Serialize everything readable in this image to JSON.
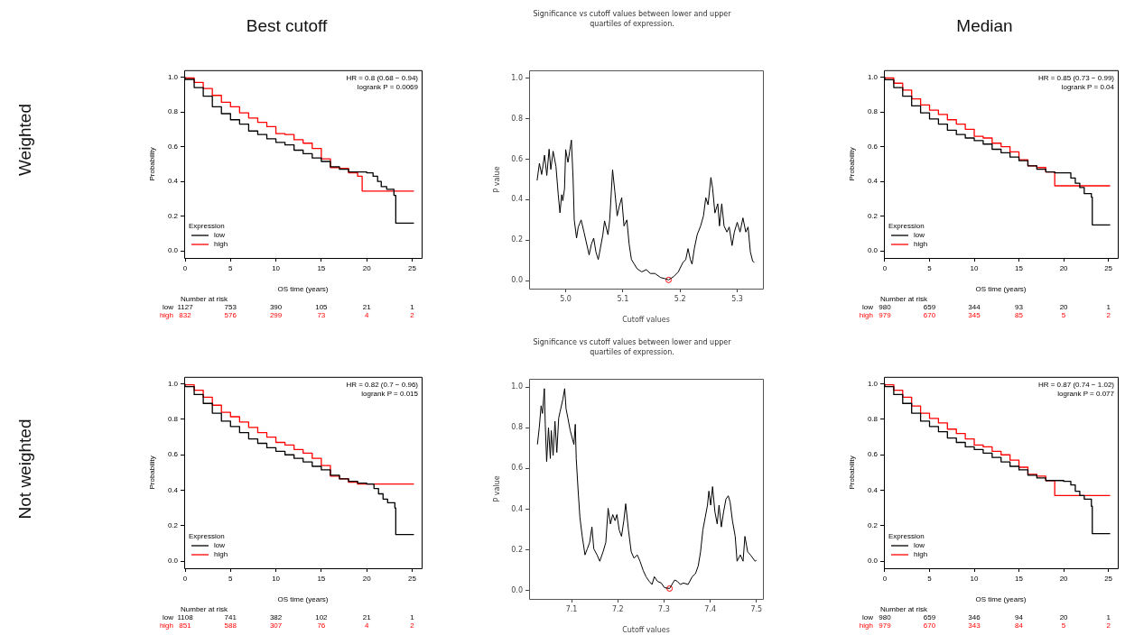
{
  "chart_data": [
    {
      "type": "step",
      "title": "Best cutoff",
      "xlabel": "OS time (years)",
      "ylabel": "Probability",
      "legend": "bottom left",
      "legend_title": "Expression",
      "xlim": [
        -0.1,
        26.05
      ],
      "ylim": [
        -0.04,
        1.04
      ],
      "xticks": [
        0,
        5,
        10,
        15,
        20,
        25
      ],
      "yticks": [
        {
          "value": 0,
          "label": "0.0"
        },
        {
          "value": 0.2,
          "label": "0.2"
        },
        {
          "value": 0.4,
          "label": "0.4"
        },
        {
          "value": 0.6,
          "label": "0.6"
        },
        {
          "value": 0.8,
          "label": "0.8"
        },
        {
          "value": 1,
          "label": "1.0"
        }
      ],
      "series": [
        {
          "name": "low",
          "color": "#000000",
          "x": [
            0,
            1,
            2,
            3,
            4,
            5,
            6,
            7,
            8,
            9,
            10,
            11,
            12,
            13,
            14,
            15,
            16,
            17,
            18,
            19,
            20,
            20.7,
            21.2,
            21.6,
            22.2,
            23.0,
            23.2,
            24.4,
            25.2
          ],
          "values": [
            1,
            0.987,
            0.94,
            0.89,
            0.83,
            0.79,
            0.755,
            0.73,
            0.69,
            0.67,
            0.645,
            0.625,
            0.61,
            0.58,
            0.56,
            0.535,
            0.515,
            0.485,
            0.47,
            0.455,
            0.455,
            0.45,
            0.43,
            0.4,
            0.37,
            0.355,
            0.32,
            0.16,
            0.16
          ]
        },
        {
          "name": "high",
          "color": "#ff0000",
          "x": [
            0,
            1,
            2,
            3,
            4,
            5,
            6,
            7,
            8,
            9,
            10,
            11,
            12,
            13,
            14,
            15,
            16,
            17,
            18,
            19,
            19.5,
            19.9,
            25.2
          ],
          "values": [
            1,
            0.995,
            0.97,
            0.935,
            0.895,
            0.855,
            0.83,
            0.795,
            0.765,
            0.74,
            0.715,
            0.675,
            0.67,
            0.64,
            0.62,
            0.59,
            0.53,
            0.48,
            0.475,
            0.45,
            0.43,
            0.345,
            0.345
          ]
        }
      ],
      "annotations": [
        "HR = 0.8 (0.68 − 0.94)",
        "logrank P = 0.0069",
        "Number at risk",
        "low",
        "1127",
        "753",
        "390",
        "105",
        "21",
        "1",
        "high",
        "832",
        "576",
        "299",
        "73",
        "4",
        "2",
        "Weighted"
      ]
    },
    {
      "type": "line",
      "title": "Significance vs cutoff values between lower and upper quartiles of expression.",
      "xlabel": "Cutoff values",
      "ylabel": "P value",
      "xlim": [
        4.936,
        5.345
      ],
      "ylim": [
        -0.04,
        1.04
      ],
      "xticks": [
        {
          "value": 5,
          "label": "5.0"
        },
        5.1,
        5.2,
        5.3
      ],
      "yticks": [
        {
          "value": 0,
          "label": "0.0"
        },
        {
          "value": 0.2,
          "label": "0.2"
        },
        {
          "value": 0.4,
          "label": "0.4"
        },
        {
          "value": 0.6,
          "label": "0.6"
        },
        {
          "value": 0.8,
          "label": "0.8"
        },
        {
          "value": 1,
          "label": "1.0"
        }
      ],
      "series": [
        {
          "color": "#000000",
          "x": [
            4.95,
            4.954,
            4.958,
            4.963,
            4.967,
            4.971,
            4.974,
            4.978,
            4.983,
            4.985,
            4.987,
            4.99,
            4.993,
            4.995,
            4.998,
            5.0,
            5.004,
            5.007,
            5.01,
            5.013,
            5.015,
            5.019,
            5.022,
            5.027,
            5.032,
            5.038,
            5.041,
            5.045,
            5.049,
            5.053,
            5.057,
            5.061,
            5.065,
            5.068,
            5.074,
            5.077,
            5.082,
            5.086,
            5.09,
            5.094,
            5.098,
            5.102,
            5.107,
            5.111,
            5.115,
            5.12,
            5.125,
            5.133,
            5.141,
            5.148,
            5.156,
            5.166,
            5.174,
            5.18,
            5.189,
            5.197,
            5.205,
            5.21,
            5.214,
            5.218,
            5.221,
            5.225,
            5.23,
            5.236,
            5.241,
            5.245,
            5.249,
            5.254,
            5.257,
            5.261,
            5.266,
            5.269,
            5.273,
            5.277,
            5.282,
            5.286,
            5.291,
            5.295,
            5.3,
            5.305,
            5.31,
            5.315,
            5.319,
            5.323,
            5.327,
            5.33
          ],
          "values": [
            0.495,
            0.58,
            0.525,
            0.62,
            0.52,
            0.65,
            0.55,
            0.64,
            0.565,
            0.495,
            0.425,
            0.335,
            0.425,
            0.395,
            0.455,
            0.648,
            0.585,
            0.64,
            0.695,
            0.5,
            0.3,
            0.21,
            0.265,
            0.3,
            0.24,
            0.165,
            0.127,
            0.18,
            0.21,
            0.14,
            0.104,
            0.165,
            0.227,
            0.295,
            0.227,
            0.3,
            0.548,
            0.44,
            0.32,
            0.37,
            0.41,
            0.27,
            0.3,
            0.18,
            0.104,
            0.081,
            0.058,
            0.043,
            0.054,
            0.035,
            0.035,
            0.015,
            0.009,
            0.003,
            0.02,
            0.043,
            0.089,
            0.104,
            0.158,
            0.104,
            0.081,
            0.158,
            0.227,
            0.27,
            0.32,
            0.41,
            0.375,
            0.51,
            0.456,
            0.334,
            0.38,
            0.27,
            0.38,
            0.27,
            0.24,
            0.265,
            0.173,
            0.24,
            0.288,
            0.24,
            0.31,
            0.24,
            0.265,
            0.142,
            0.096,
            0.09
          ]
        },
        {
          "type": "scatter",
          "marker": "circle",
          "color": "#ff0000",
          "x": [
            5.18
          ],
          "values": [
            0.003
          ]
        }
      ]
    },
    {
      "type": "step",
      "title": "Median",
      "xlabel": "OS time (years)",
      "ylabel": "Probability",
      "legend": "bottom left",
      "legend_title": "Expression",
      "xlim": [
        -0.1,
        26.05
      ],
      "ylim": [
        -0.04,
        1.04
      ],
      "xticks": [
        0,
        5,
        10,
        15,
        20,
        25
      ],
      "yticks": [
        {
          "value": 0,
          "label": "0.0"
        },
        {
          "value": 0.2,
          "label": "0.2"
        },
        {
          "value": 0.4,
          "label": "0.4"
        },
        {
          "value": 0.6,
          "label": "0.6"
        },
        {
          "value": 0.8,
          "label": "0.8"
        },
        {
          "value": 1,
          "label": "1.0"
        }
      ],
      "series": [
        {
          "name": "low",
          "color": "#000000",
          "x": [
            0,
            1,
            2,
            3,
            4,
            5,
            6,
            7,
            8,
            9,
            10,
            11,
            12,
            13,
            14,
            15,
            16,
            17,
            18,
            19,
            20,
            20.8,
            21.3,
            21.8,
            22.3,
            23.1,
            23.2,
            24.4,
            25.2
          ],
          "values": [
            1,
            0.985,
            0.94,
            0.89,
            0.835,
            0.795,
            0.76,
            0.73,
            0.695,
            0.67,
            0.65,
            0.635,
            0.615,
            0.585,
            0.565,
            0.54,
            0.52,
            0.49,
            0.47,
            0.455,
            0.45,
            0.45,
            0.42,
            0.39,
            0.365,
            0.33,
            0.31,
            0.15,
            0.15
          ]
        },
        {
          "name": "high",
          "color": "#ff0000",
          "x": [
            0,
            1,
            2,
            3,
            4,
            5,
            6,
            7,
            8,
            9,
            10,
            11,
            12,
            13,
            14,
            15,
            16,
            17,
            18,
            19,
            19.9,
            25.2
          ],
          "values": [
            1,
            0.995,
            0.965,
            0.925,
            0.875,
            0.84,
            0.81,
            0.785,
            0.755,
            0.73,
            0.7,
            0.66,
            0.65,
            0.62,
            0.6,
            0.57,
            0.525,
            0.49,
            0.48,
            0.455,
            0.375,
            0.375
          ]
        }
      ],
      "annotations": [
        "HR = 0.85 (0.73 − 0.99)",
        "logrank P = 0.04",
        "Number at risk",
        "low",
        "980",
        "659",
        "344",
        "93",
        "20",
        "1",
        "high",
        "979",
        "670",
        "345",
        "85",
        "5",
        "2"
      ]
    },
    {
      "type": "step",
      "xlabel": "OS time (years)",
      "ylabel": "Probability",
      "legend": "bottom left",
      "legend_title": "Expression",
      "xlim": [
        -0.1,
        26.05
      ],
      "ylim": [
        -0.04,
        1.04
      ],
      "xticks": [
        0,
        5,
        10,
        15,
        20,
        25
      ],
      "yticks": [
        {
          "value": 0,
          "label": "0.0"
        },
        {
          "value": 0.2,
          "label": "0.2"
        },
        {
          "value": 0.4,
          "label": "0.4"
        },
        {
          "value": 0.6,
          "label": "0.6"
        },
        {
          "value": 0.8,
          "label": "0.8"
        },
        {
          "value": 1,
          "label": "1.0"
        }
      ],
      "series": [
        {
          "name": "low",
          "color": "#000000",
          "x": [
            0,
            1,
            2,
            3,
            4,
            5,
            6,
            7,
            8,
            9,
            10,
            11,
            12,
            13,
            14,
            15,
            16,
            17,
            18,
            19,
            20,
            20.8,
            21.3,
            21.8,
            22.3,
            23.1,
            23.2,
            24.4,
            25.2
          ],
          "values": [
            1,
            0.985,
            0.94,
            0.89,
            0.835,
            0.79,
            0.76,
            0.725,
            0.69,
            0.665,
            0.64,
            0.62,
            0.6,
            0.58,
            0.56,
            0.535,
            0.515,
            0.485,
            0.465,
            0.45,
            0.44,
            0.435,
            0.41,
            0.38,
            0.35,
            0.33,
            0.3,
            0.15,
            0.15
          ]
        },
        {
          "name": "high",
          "color": "#ff0000",
          "x": [
            0,
            1,
            2,
            3,
            4,
            5,
            6,
            7,
            8,
            9,
            10,
            11,
            12,
            13,
            14,
            15,
            16,
            17,
            18,
            19,
            19.5,
            25.2
          ],
          "values": [
            1,
            0.995,
            0.965,
            0.925,
            0.88,
            0.84,
            0.815,
            0.785,
            0.755,
            0.725,
            0.7,
            0.67,
            0.655,
            0.63,
            0.61,
            0.58,
            0.54,
            0.48,
            0.465,
            0.445,
            0.435,
            0.435
          ]
        }
      ],
      "annotations": [
        "HR = 0.82 (0.7 − 0.96)",
        "logrank P = 0.015",
        "Number at risk",
        "low",
        "1108",
        "741",
        "382",
        "102",
        "21",
        "1",
        "high",
        "851",
        "588",
        "307",
        "76",
        "4",
        "2",
        "Not weighted"
      ]
    },
    {
      "type": "line",
      "title": "Significance vs cutoff values between lower and upper quartiles of expression.",
      "xlabel": "Cutoff values",
      "ylabel": "P value",
      "xlim": [
        7.008,
        7.514
      ],
      "ylim": [
        -0.04,
        1.04
      ],
      "xticks": [
        7.1,
        7.2,
        7.3,
        7.4,
        7.5
      ],
      "yticks": [
        {
          "value": 0,
          "label": "0.0"
        },
        {
          "value": 0.2,
          "label": "0.2"
        },
        {
          "value": 0.4,
          "label": "0.4"
        },
        {
          "value": 0.6,
          "label": "0.6"
        },
        {
          "value": 0.8,
          "label": "0.8"
        },
        {
          "value": 1,
          "label": "1.0"
        }
      ],
      "series": [
        {
          "color": "#000000",
          "x": [
            7.026,
            7.03,
            7.034,
            7.037,
            7.041,
            7.043,
            7.046,
            7.05,
            7.054,
            7.056,
            7.06,
            7.064,
            7.068,
            7.072,
            7.075,
            7.081,
            7.085,
            7.088,
            7.092,
            7.097,
            7.105,
            7.108,
            7.11,
            7.114,
            7.118,
            7.123,
            7.129,
            7.134,
            7.139,
            7.144,
            7.148,
            7.155,
            7.161,
            7.168,
            7.174,
            7.179,
            7.184,
            7.189,
            7.194,
            7.198,
            7.203,
            7.208,
            7.213,
            7.217,
            7.223,
            7.229,
            7.235,
            7.242,
            7.248,
            7.255,
            7.261,
            7.268,
            7.274,
            7.279,
            7.286,
            7.294,
            7.301,
            7.312,
            7.323,
            7.329,
            7.335,
            7.342,
            7.352,
            7.361,
            7.368,
            7.374,
            7.379,
            7.384,
            7.389,
            7.394,
            7.397,
            7.401,
            7.405,
            7.41,
            7.415,
            7.419,
            7.424,
            7.429,
            7.434,
            7.439,
            7.443,
            7.448,
            7.454,
            7.458,
            7.465,
            7.471,
            7.475,
            7.481,
            7.487,
            7.497,
            7.5
          ],
          "values": [
            0.718,
            0.8,
            0.908,
            0.87,
            0.992,
            0.817,
            0.634,
            0.8,
            0.649,
            0.786,
            0.664,
            0.832,
            0.679,
            0.847,
            0.878,
            0.939,
            0.992,
            0.893,
            0.847,
            0.786,
            0.718,
            0.817,
            0.649,
            0.496,
            0.359,
            0.267,
            0.176,
            0.206,
            0.237,
            0.313,
            0.206,
            0.176,
            0.145,
            0.191,
            0.237,
            0.405,
            0.328,
            0.374,
            0.344,
            0.374,
            0.298,
            0.267,
            0.344,
            0.427,
            0.298,
            0.191,
            0.16,
            0.176,
            0.145,
            0.099,
            0.069,
            0.046,
            0.031,
            0.069,
            0.046,
            0.038,
            0.015,
            0.011,
            0.053,
            0.046,
            0.031,
            0.038,
            0.031,
            0.069,
            0.084,
            0.122,
            0.191,
            0.298,
            0.359,
            0.42,
            0.489,
            0.42,
            0.511,
            0.389,
            0.328,
            0.42,
            0.313,
            0.389,
            0.45,
            0.466,
            0.435,
            0.344,
            0.267,
            0.145,
            0.176,
            0.145,
            0.267,
            0.191,
            0.176,
            0.145,
            0.15
          ]
        },
        {
          "type": "scatter",
          "marker": "circle",
          "color": "#ff0000",
          "x": [
            7.312
          ],
          "values": [
            0.011
          ]
        }
      ]
    },
    {
      "type": "step",
      "xlabel": "OS time (years)",
      "ylabel": "Probability",
      "legend": "bottom left",
      "legend_title": "Expression",
      "xlim": [
        -0.1,
        26.05
      ],
      "ylim": [
        -0.04,
        1.04
      ],
      "xticks": [
        0,
        5,
        10,
        15,
        20,
        25
      ],
      "yticks": [
        {
          "value": 0,
          "label": "0.0"
        },
        {
          "value": 0.2,
          "label": "0.2"
        },
        {
          "value": 0.4,
          "label": "0.4"
        },
        {
          "value": 0.6,
          "label": "0.6"
        },
        {
          "value": 0.8,
          "label": "0.8"
        },
        {
          "value": 1,
          "label": "1.0"
        }
      ],
      "series": [
        {
          "name": "low",
          "color": "#000000",
          "x": [
            0,
            1,
            2,
            3,
            4,
            5,
            6,
            7,
            8,
            9,
            10,
            11,
            12,
            13,
            14,
            15,
            16,
            17,
            18,
            19,
            20,
            20.8,
            21.3,
            21.8,
            22.3,
            23.1,
            23.2,
            24.4,
            25.2
          ],
          "values": [
            1,
            0.985,
            0.94,
            0.89,
            0.835,
            0.79,
            0.76,
            0.73,
            0.695,
            0.67,
            0.645,
            0.63,
            0.61,
            0.585,
            0.56,
            0.535,
            0.515,
            0.485,
            0.47,
            0.455,
            0.455,
            0.45,
            0.43,
            0.395,
            0.37,
            0.35,
            0.31,
            0.155,
            0.155
          ]
        },
        {
          "name": "high",
          "color": "#ff0000",
          "x": [
            0,
            1,
            2,
            3,
            4,
            5,
            6,
            7,
            8,
            9,
            10,
            11,
            12,
            13,
            14,
            15,
            16,
            17,
            18,
            19,
            19.9,
            25.2
          ],
          "values": [
            1,
            0.995,
            0.965,
            0.925,
            0.875,
            0.835,
            0.805,
            0.78,
            0.745,
            0.72,
            0.69,
            0.655,
            0.645,
            0.62,
            0.6,
            0.57,
            0.53,
            0.49,
            0.48,
            0.455,
            0.37,
            0.37
          ]
        }
      ],
      "annotations": [
        "HR = 0.87 (0.74 − 1.02)",
        "logrank P = 0.077",
        "Number at risk",
        "low",
        "980",
        "659",
        "346",
        "94",
        "20",
        "1",
        "high",
        "979",
        "670",
        "343",
        "84",
        "5",
        "2"
      ]
    }
  ]
}
